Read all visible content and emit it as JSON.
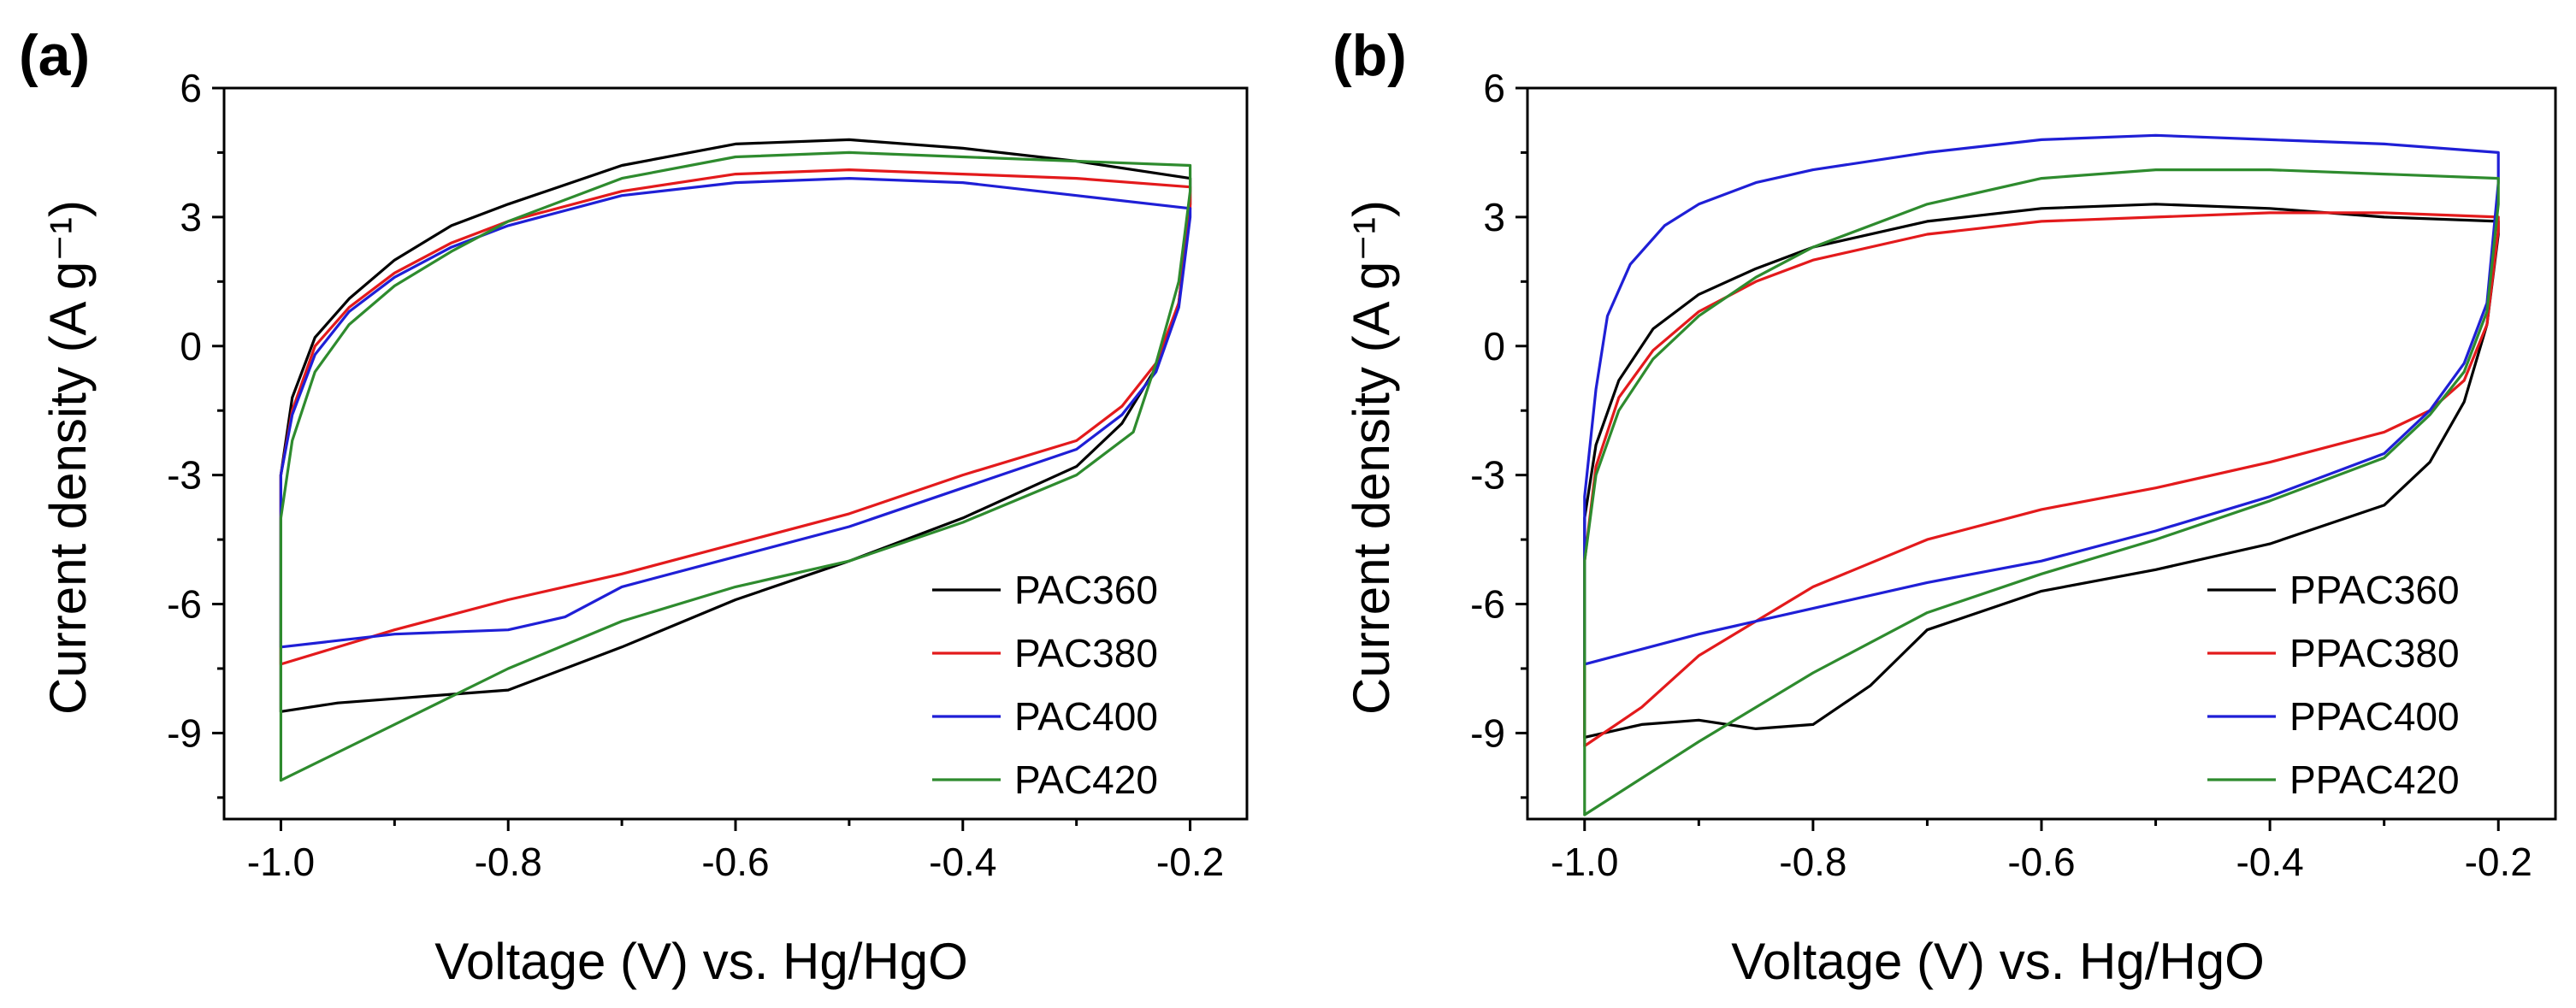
{
  "chart_data": [
    {
      "type": "line",
      "panel_label": "(a)",
      "xlabel": "Voltage (V) vs. Hg/HgO",
      "ylabel": "Current density (A g⁻¹)",
      "xlim": [
        -1.05,
        -0.15
      ],
      "ylim": [
        -11,
        6
      ],
      "xticks": [
        -1.0,
        -0.8,
        -0.6,
        -0.4,
        -0.2
      ],
      "xtick_labels": [
        "-1.0",
        "-0.8",
        "-0.6",
        "-0.4",
        "-0.2"
      ],
      "yticks": [
        6,
        3,
        0,
        -3,
        -6,
        -9
      ],
      "ytick_labels": [
        "6",
        "3",
        "0",
        "-3",
        "-6",
        "-9"
      ],
      "legend_position": "bottom-right",
      "series": [
        {
          "name": "PAC360",
          "color": "#000000",
          "points": [
            [
              -1.0,
              -8.5
            ],
            [
              -1.0,
              -3.0
            ],
            [
              -0.99,
              -1.2
            ],
            [
              -0.97,
              0.2
            ],
            [
              -0.94,
              1.1
            ],
            [
              -0.9,
              2.0
            ],
            [
              -0.85,
              2.8
            ],
            [
              -0.8,
              3.3
            ],
            [
              -0.7,
              4.2
            ],
            [
              -0.6,
              4.7
            ],
            [
              -0.5,
              4.8
            ],
            [
              -0.4,
              4.6
            ],
            [
              -0.3,
              4.3
            ],
            [
              -0.2,
              3.9
            ],
            [
              -0.2,
              3.3
            ],
            [
              -0.21,
              1.0
            ],
            [
              -0.23,
              -0.5
            ],
            [
              -0.26,
              -1.8
            ],
            [
              -0.3,
              -2.8
            ],
            [
              -0.4,
              -4.0
            ],
            [
              -0.5,
              -5.0
            ],
            [
              -0.6,
              -5.9
            ],
            [
              -0.7,
              -7.0
            ],
            [
              -0.8,
              -8.0
            ],
            [
              -0.85,
              -8.1
            ],
            [
              -0.9,
              -8.2
            ],
            [
              -0.95,
              -8.3
            ],
            [
              -1.0,
              -8.5
            ]
          ]
        },
        {
          "name": "PAC380",
          "color": "#e31a1c",
          "points": [
            [
              -1.0,
              -7.4
            ],
            [
              -1.0,
              -3.0
            ],
            [
              -0.99,
              -1.5
            ],
            [
              -0.97,
              0.0
            ],
            [
              -0.94,
              0.9
            ],
            [
              -0.9,
              1.7
            ],
            [
              -0.85,
              2.4
            ],
            [
              -0.8,
              2.9
            ],
            [
              -0.7,
              3.6
            ],
            [
              -0.6,
              4.0
            ],
            [
              -0.5,
              4.1
            ],
            [
              -0.4,
              4.0
            ],
            [
              -0.3,
              3.9
            ],
            [
              -0.2,
              3.7
            ],
            [
              -0.2,
              3.2
            ],
            [
              -0.21,
              1.0
            ],
            [
              -0.23,
              -0.4
            ],
            [
              -0.26,
              -1.4
            ],
            [
              -0.3,
              -2.2
            ],
            [
              -0.4,
              -3.0
            ],
            [
              -0.5,
              -3.9
            ],
            [
              -0.6,
              -4.6
            ],
            [
              -0.7,
              -5.3
            ],
            [
              -0.8,
              -5.9
            ],
            [
              -0.9,
              -6.6
            ],
            [
              -1.0,
              -7.4
            ]
          ]
        },
        {
          "name": "PAC400",
          "color": "#1f1fd6",
          "points": [
            [
              -1.0,
              -7.0
            ],
            [
              -1.0,
              -3.0
            ],
            [
              -0.99,
              -1.6
            ],
            [
              -0.97,
              -0.2
            ],
            [
              -0.94,
              0.8
            ],
            [
              -0.9,
              1.6
            ],
            [
              -0.85,
              2.3
            ],
            [
              -0.8,
              2.8
            ],
            [
              -0.7,
              3.5
            ],
            [
              -0.6,
              3.8
            ],
            [
              -0.5,
              3.9
            ],
            [
              -0.4,
              3.8
            ],
            [
              -0.3,
              3.5
            ],
            [
              -0.2,
              3.2
            ],
            [
              -0.2,
              3.0
            ],
            [
              -0.21,
              0.9
            ],
            [
              -0.23,
              -0.6
            ],
            [
              -0.26,
              -1.6
            ],
            [
              -0.3,
              -2.4
            ],
            [
              -0.4,
              -3.3
            ],
            [
              -0.5,
              -4.2
            ],
            [
              -0.6,
              -4.9
            ],
            [
              -0.7,
              -5.6
            ],
            [
              -0.75,
              -6.3
            ],
            [
              -0.8,
              -6.6
            ],
            [
              -0.9,
              -6.7
            ],
            [
              -1.0,
              -7.0
            ]
          ]
        },
        {
          "name": "PAC420",
          "color": "#2e8b2e",
          "points": [
            [
              -1.0,
              -10.1
            ],
            [
              -1.0,
              -4.0
            ],
            [
              -0.99,
              -2.2
            ],
            [
              -0.97,
              -0.6
            ],
            [
              -0.94,
              0.5
            ],
            [
              -0.9,
              1.4
            ],
            [
              -0.85,
              2.2
            ],
            [
              -0.8,
              2.9
            ],
            [
              -0.7,
              3.9
            ],
            [
              -0.6,
              4.4
            ],
            [
              -0.5,
              4.5
            ],
            [
              -0.4,
              4.4
            ],
            [
              -0.3,
              4.3
            ],
            [
              -0.2,
              4.2
            ],
            [
              -0.2,
              3.6
            ],
            [
              -0.21,
              1.5
            ],
            [
              -0.23,
              -0.4
            ],
            [
              -0.25,
              -2.0
            ],
            [
              -0.3,
              -3.0
            ],
            [
              -0.4,
              -4.1
            ],
            [
              -0.5,
              -5.0
            ],
            [
              -0.6,
              -5.6
            ],
            [
              -0.7,
              -6.4
            ],
            [
              -0.8,
              -7.5
            ],
            [
              -0.9,
              -8.8
            ],
            [
              -1.0,
              -10.1
            ]
          ]
        }
      ]
    },
    {
      "type": "line",
      "panel_label": "(b)",
      "xlabel": "Voltage (V) vs. Hg/HgO",
      "ylabel": "Current density (A g⁻¹)",
      "xlim": [
        -1.05,
        -0.15
      ],
      "ylim": [
        -11,
        6
      ],
      "xticks": [
        -1.0,
        -0.8,
        -0.6,
        -0.4,
        -0.2
      ],
      "xtick_labels": [
        "-1.0",
        "-0.8",
        "-0.6",
        "-0.4",
        "-0.2"
      ],
      "yticks": [
        6,
        3,
        0,
        -3,
        -6,
        -9
      ],
      "ytick_labels": [
        "6",
        "3",
        "0",
        "-3",
        "-6",
        "-9"
      ],
      "legend_position": "bottom-right",
      "series": [
        {
          "name": "PPAC360",
          "color": "#000000",
          "points": [
            [
              -1.0,
              -9.1
            ],
            [
              -1.0,
              -4.0
            ],
            [
              -0.99,
              -2.3
            ],
            [
              -0.97,
              -0.8
            ],
            [
              -0.94,
              0.4
            ],
            [
              -0.9,
              1.2
            ],
            [
              -0.85,
              1.8
            ],
            [
              -0.8,
              2.3
            ],
            [
              -0.7,
              2.9
            ],
            [
              -0.6,
              3.2
            ],
            [
              -0.5,
              3.3
            ],
            [
              -0.4,
              3.2
            ],
            [
              -0.3,
              3.0
            ],
            [
              -0.2,
              2.9
            ],
            [
              -0.2,
              2.6
            ],
            [
              -0.21,
              0.5
            ],
            [
              -0.23,
              -1.3
            ],
            [
              -0.26,
              -2.7
            ],
            [
              -0.3,
              -3.7
            ],
            [
              -0.4,
              -4.6
            ],
            [
              -0.5,
              -5.2
            ],
            [
              -0.6,
              -5.7
            ],
            [
              -0.7,
              -6.6
            ],
            [
              -0.75,
              -7.9
            ],
            [
              -0.8,
              -8.8
            ],
            [
              -0.85,
              -8.9
            ],
            [
              -0.9,
              -8.7
            ],
            [
              -0.95,
              -8.8
            ],
            [
              -1.0,
              -9.1
            ]
          ]
        },
        {
          "name": "PPAC380",
          "color": "#e31a1c",
          "points": [
            [
              -1.0,
              -9.3
            ],
            [
              -1.0,
              -5.0
            ],
            [
              -0.99,
              -2.8
            ],
            [
              -0.97,
              -1.2
            ],
            [
              -0.94,
              -0.1
            ],
            [
              -0.9,
              0.8
            ],
            [
              -0.85,
              1.5
            ],
            [
              -0.8,
              2.0
            ],
            [
              -0.7,
              2.6
            ],
            [
              -0.6,
              2.9
            ],
            [
              -0.5,
              3.0
            ],
            [
              -0.4,
              3.1
            ],
            [
              -0.3,
              3.1
            ],
            [
              -0.2,
              3.0
            ],
            [
              -0.2,
              2.7
            ],
            [
              -0.21,
              0.5
            ],
            [
              -0.23,
              -0.8
            ],
            [
              -0.26,
              -1.5
            ],
            [
              -0.3,
              -2.0
            ],
            [
              -0.4,
              -2.7
            ],
            [
              -0.5,
              -3.3
            ],
            [
              -0.6,
              -3.8
            ],
            [
              -0.7,
              -4.5
            ],
            [
              -0.8,
              -5.6
            ],
            [
              -0.9,
              -7.2
            ],
            [
              -0.95,
              -8.4
            ],
            [
              -1.0,
              -9.3
            ]
          ]
        },
        {
          "name": "PPAC400",
          "color": "#1f1fd6",
          "points": [
            [
              -1.0,
              -7.4
            ],
            [
              -1.0,
              -3.5
            ],
            [
              -0.99,
              -1.0
            ],
            [
              -0.98,
              0.7
            ],
            [
              -0.96,
              1.9
            ],
            [
              -0.93,
              2.8
            ],
            [
              -0.9,
              3.3
            ],
            [
              -0.85,
              3.8
            ],
            [
              -0.8,
              4.1
            ],
            [
              -0.7,
              4.5
            ],
            [
              -0.6,
              4.8
            ],
            [
              -0.5,
              4.9
            ],
            [
              -0.4,
              4.8
            ],
            [
              -0.3,
              4.7
            ],
            [
              -0.2,
              4.5
            ],
            [
              -0.2,
              3.8
            ],
            [
              -0.21,
              1.0
            ],
            [
              -0.23,
              -0.4
            ],
            [
              -0.26,
              -1.5
            ],
            [
              -0.3,
              -2.5
            ],
            [
              -0.4,
              -3.5
            ],
            [
              -0.5,
              -4.3
            ],
            [
              -0.6,
              -5.0
            ],
            [
              -0.7,
              -5.5
            ],
            [
              -0.8,
              -6.1
            ],
            [
              -0.9,
              -6.7
            ],
            [
              -1.0,
              -7.4
            ]
          ]
        },
        {
          "name": "PPAC420",
          "color": "#2e8b2e",
          "points": [
            [
              -1.0,
              -10.9
            ],
            [
              -1.0,
              -5.0
            ],
            [
              -0.99,
              -3.0
            ],
            [
              -0.97,
              -1.5
            ],
            [
              -0.94,
              -0.3
            ],
            [
              -0.9,
              0.7
            ],
            [
              -0.85,
              1.6
            ],
            [
              -0.8,
              2.3
            ],
            [
              -0.7,
              3.3
            ],
            [
              -0.6,
              3.9
            ],
            [
              -0.5,
              4.1
            ],
            [
              -0.4,
              4.1
            ],
            [
              -0.3,
              4.0
            ],
            [
              -0.2,
              3.9
            ],
            [
              -0.2,
              3.3
            ],
            [
              -0.21,
              0.8
            ],
            [
              -0.23,
              -0.6
            ],
            [
              -0.26,
              -1.6
            ],
            [
              -0.3,
              -2.6
            ],
            [
              -0.4,
              -3.6
            ],
            [
              -0.5,
              -4.5
            ],
            [
              -0.6,
              -5.3
            ],
            [
              -0.7,
              -6.2
            ],
            [
              -0.8,
              -7.6
            ],
            [
              -0.9,
              -9.2
            ],
            [
              -1.0,
              -10.9
            ]
          ]
        }
      ]
    }
  ]
}
